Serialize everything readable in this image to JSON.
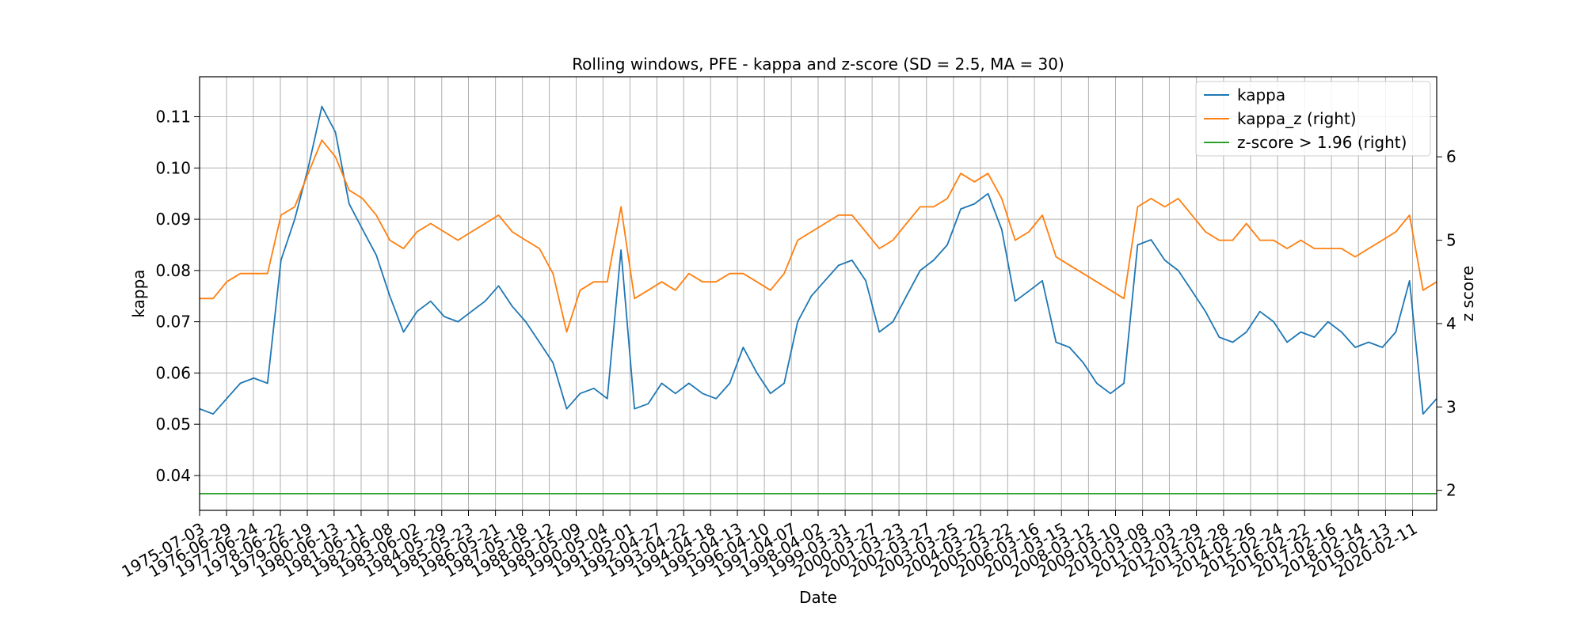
{
  "chart_data": {
    "type": "line",
    "title": "Rolling windows, PFE - kappa and z-score (SD = 2.5, MA = 30)",
    "xlabel": "Date",
    "ylabel": "kappa",
    "ylabel_right": "z score",
    "xlim": [
      "1975-07-03",
      "2020-12-31"
    ],
    "ylim": [
      0.0332,
      0.1178
    ],
    "ylim_right": [
      1.76,
      6.96
    ],
    "y_ticks": [
      "0.04",
      "0.05",
      "0.06",
      "0.07",
      "0.08",
      "0.09",
      "0.10",
      "0.11"
    ],
    "y_ticks_right": [
      "2",
      "3",
      "4",
      "5",
      "6"
    ],
    "x_ticks": [
      "1975-07-03",
      "1976-06-29",
      "1977-06-24",
      "1978-06-22",
      "1979-06-19",
      "1980-06-13",
      "1981-06-11",
      "1982-06-08",
      "1983-06-02",
      "1984-05-29",
      "1985-05-23",
      "1986-05-21",
      "1987-05-18",
      "1988-05-12",
      "1989-05-09",
      "1990-05-04",
      "1991-05-01",
      "1992-04-27",
      "1993-04-22",
      "1994-04-18",
      "1995-04-13",
      "1996-04-10",
      "1997-04-07",
      "1998-04-02",
      "1999-03-31",
      "2000-03-27",
      "2001-03-23",
      "2002-03-27",
      "2003-03-25",
      "2004-03-22",
      "2005-03-22",
      "2006-03-16",
      "2007-03-15",
      "2008-03-12",
      "2009-03-10",
      "2010-03-08",
      "2011-03-03",
      "2012-02-29",
      "2013-02-28",
      "2014-02-26",
      "2015-02-24",
      "2016-02-22",
      "2017-02-16",
      "2018-02-14",
      "2019-02-13",
      "2020-02-11"
    ],
    "grid": true,
    "legend_position": "top-right",
    "series": [
      {
        "name": "kappa",
        "axis": "left",
        "color": "#1f77b4",
        "x": [
          "1975-07-03",
          "1976-01-01",
          "1976-07-01",
          "1977-01-01",
          "1977-07-01",
          "1978-01-01",
          "1978-07-01",
          "1979-01-01",
          "1979-07-01",
          "1980-01-01",
          "1980-07-01",
          "1981-01-01",
          "1981-07-01",
          "1982-01-01",
          "1982-07-01",
          "1983-01-01",
          "1983-07-01",
          "1984-01-01",
          "1984-07-01",
          "1985-01-01",
          "1985-07-01",
          "1986-01-01",
          "1986-07-01",
          "1987-01-01",
          "1987-07-01",
          "1988-01-01",
          "1988-07-01",
          "1989-01-01",
          "1989-07-01",
          "1990-01-01",
          "1990-07-01",
          "1991-01-01",
          "1991-07-01",
          "1992-01-01",
          "1992-07-01",
          "1993-01-01",
          "1993-07-01",
          "1994-01-01",
          "1994-07-01",
          "1995-01-01",
          "1995-07-01",
          "1996-01-01",
          "1996-07-01",
          "1997-01-01",
          "1997-07-01",
          "1998-01-01",
          "1998-07-01",
          "1999-01-01",
          "1999-07-01",
          "2000-01-01",
          "2000-07-01",
          "2001-01-01",
          "2001-07-01",
          "2002-01-01",
          "2002-07-01",
          "2003-01-01",
          "2003-07-01",
          "2004-01-01",
          "2004-07-01",
          "2005-01-01",
          "2005-07-01",
          "2006-01-01",
          "2006-07-01",
          "2007-01-01",
          "2007-07-01",
          "2008-01-01",
          "2008-07-01",
          "2009-01-01",
          "2009-07-01",
          "2010-01-01",
          "2010-07-01",
          "2011-01-01",
          "2011-07-01",
          "2012-01-01",
          "2012-07-01",
          "2013-01-01",
          "2013-07-01",
          "2014-01-01",
          "2014-07-01",
          "2015-01-01",
          "2015-07-01",
          "2016-01-01",
          "2016-07-01",
          "2017-01-01",
          "2017-07-01",
          "2018-01-01",
          "2018-07-01",
          "2019-01-01",
          "2019-07-01",
          "2020-01-01",
          "2020-07-01",
          "2020-12-31"
        ],
        "values": [
          0.053,
          0.052,
          0.055,
          0.058,
          0.059,
          0.058,
          0.082,
          0.09,
          0.1,
          0.112,
          0.107,
          0.093,
          0.088,
          0.083,
          0.075,
          0.068,
          0.072,
          0.074,
          0.071,
          0.07,
          0.072,
          0.074,
          0.077,
          0.073,
          0.07,
          0.066,
          0.062,
          0.053,
          0.056,
          0.057,
          0.055,
          0.084,
          0.053,
          0.054,
          0.058,
          0.056,
          0.058,
          0.056,
          0.055,
          0.058,
          0.065,
          0.06,
          0.056,
          0.058,
          0.07,
          0.075,
          0.078,
          0.081,
          0.082,
          0.078,
          0.068,
          0.07,
          0.075,
          0.08,
          0.082,
          0.085,
          0.092,
          0.093,
          0.095,
          0.088,
          0.074,
          0.076,
          0.078,
          0.066,
          0.065,
          0.062,
          0.058,
          0.056,
          0.058,
          0.085,
          0.086,
          0.082,
          0.08,
          0.076,
          0.072,
          0.067,
          0.066,
          0.068,
          0.072,
          0.07,
          0.066,
          0.068,
          0.067,
          0.07,
          0.068,
          0.065,
          0.066,
          0.065,
          0.068,
          0.078,
          0.052,
          0.055
        ]
      },
      {
        "name": "kappa_z (right)",
        "axis": "right",
        "color": "#ff7f0e",
        "x": [
          "1975-07-03",
          "1976-01-01",
          "1976-07-01",
          "1977-01-01",
          "1977-07-01",
          "1978-01-01",
          "1978-07-01",
          "1979-01-01",
          "1979-07-01",
          "1980-01-01",
          "1980-07-01",
          "1981-01-01",
          "1981-07-01",
          "1982-01-01",
          "1982-07-01",
          "1983-01-01",
          "1983-07-01",
          "1984-01-01",
          "1984-07-01",
          "1985-01-01",
          "1985-07-01",
          "1986-01-01",
          "1986-07-01",
          "1987-01-01",
          "1987-07-01",
          "1988-01-01",
          "1988-07-01",
          "1989-01-01",
          "1989-07-01",
          "1990-01-01",
          "1990-07-01",
          "1991-01-01",
          "1991-07-01",
          "1992-01-01",
          "1992-07-01",
          "1993-01-01",
          "1993-07-01",
          "1994-01-01",
          "1994-07-01",
          "1995-01-01",
          "1995-07-01",
          "1996-01-01",
          "1996-07-01",
          "1997-01-01",
          "1997-07-01",
          "1998-01-01",
          "1998-07-01",
          "1999-01-01",
          "1999-07-01",
          "2000-01-01",
          "2000-07-01",
          "2001-01-01",
          "2001-07-01",
          "2002-01-01",
          "2002-07-01",
          "2003-01-01",
          "2003-07-01",
          "2004-01-01",
          "2004-07-01",
          "2005-01-01",
          "2005-07-01",
          "2006-01-01",
          "2006-07-01",
          "2007-01-01",
          "2007-07-01",
          "2008-01-01",
          "2008-07-01",
          "2009-01-01",
          "2009-07-01",
          "2010-01-01",
          "2010-07-01",
          "2011-01-01",
          "2011-07-01",
          "2012-01-01",
          "2012-07-01",
          "2013-01-01",
          "2013-07-01",
          "2014-01-01",
          "2014-07-01",
          "2015-01-01",
          "2015-07-01",
          "2016-01-01",
          "2016-07-01",
          "2017-01-01",
          "2017-07-01",
          "2018-01-01",
          "2018-07-01",
          "2019-01-01",
          "2019-07-01",
          "2020-01-01",
          "2020-07-01",
          "2020-12-31"
        ],
        "values": [
          4.3,
          4.3,
          4.5,
          4.6,
          4.6,
          4.6,
          5.3,
          5.4,
          5.8,
          6.2,
          6.0,
          5.6,
          5.5,
          5.3,
          5.0,
          4.9,
          5.1,
          5.2,
          5.1,
          5.0,
          5.1,
          5.2,
          5.3,
          5.1,
          5.0,
          4.9,
          4.6,
          3.9,
          4.4,
          4.5,
          4.5,
          5.4,
          4.3,
          4.4,
          4.5,
          4.4,
          4.6,
          4.5,
          4.5,
          4.6,
          4.6,
          4.5,
          4.4,
          4.6,
          5.0,
          5.1,
          5.2,
          5.3,
          5.3,
          5.1,
          4.9,
          5.0,
          5.2,
          5.4,
          5.4,
          5.5,
          5.8,
          5.7,
          5.8,
          5.5,
          5.0,
          5.1,
          5.3,
          4.8,
          4.7,
          4.6,
          4.5,
          4.4,
          4.3,
          5.4,
          5.5,
          5.4,
          5.5,
          5.3,
          5.1,
          5.0,
          5.0,
          5.2,
          5.0,
          5.0,
          4.9,
          5.0,
          4.9,
          4.9,
          4.9,
          4.8,
          4.9,
          5.0,
          5.1,
          5.3,
          4.4,
          4.5
        ]
      },
      {
        "name": "z-score > 1.96 (right)",
        "axis": "right",
        "color": "#2ca02c",
        "x": [
          "1975-07-03",
          "2020-12-31"
        ],
        "values": [
          1.96,
          1.96
        ]
      }
    ]
  }
}
